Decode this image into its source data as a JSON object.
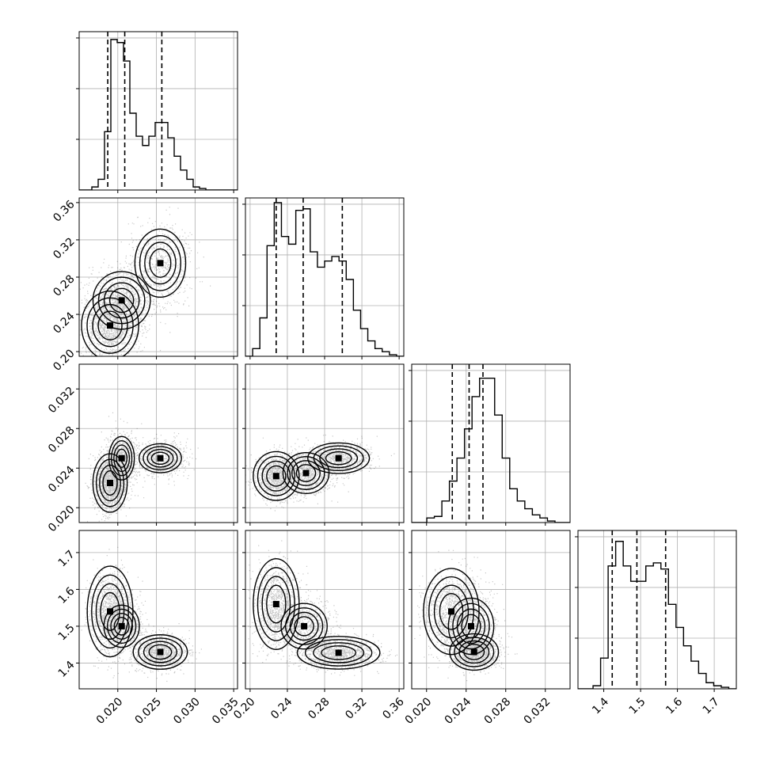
{
  "chart_data": {
    "type": "corner",
    "grid": true,
    "parameters": [
      {
        "range": [
          0.015,
          0.0355
        ],
        "ticks": [
          0.02,
          0.025,
          0.03,
          0.035
        ],
        "tick_labels": [
          "0.020",
          "0.025",
          "0.030",
          "0.035"
        ],
        "quantiles": [
          0.0187,
          0.0209,
          0.0257
        ],
        "modes": [
          {
            "center": 0.0195,
            "sigma": 0.0018,
            "weight": 0.6
          },
          {
            "center": 0.0255,
            "sigma": 0.0018,
            "weight": 0.4
          }
        ]
      },
      {
        "range": [
          0.195,
          0.365
        ],
        "ticks": [
          0.2,
          0.24,
          0.28,
          0.32,
          0.36
        ],
        "tick_labels": [
          "0.20",
          "0.24",
          "0.28",
          "0.32",
          "0.36"
        ],
        "quantiles": [
          0.228,
          0.257,
          0.299
        ],
        "modes": [
          {
            "center": 0.228,
            "sigma": 0.012,
            "weight": 0.35
          },
          {
            "center": 0.258,
            "sigma": 0.012,
            "weight": 0.35
          },
          {
            "center": 0.295,
            "sigma": 0.018,
            "weight": 0.3
          }
        ]
      },
      {
        "range": [
          0.0185,
          0.0345
        ],
        "ticks": [
          0.02,
          0.024,
          0.028,
          0.032
        ],
        "tick_labels": [
          "0.020",
          "0.024",
          "0.028",
          "0.032"
        ],
        "quantiles": [
          0.0226,
          0.0243,
          0.0257
        ],
        "modes": [
          {
            "center": 0.0245,
            "sigma": 0.0014,
            "weight": 1.0
          }
        ]
      },
      {
        "range": [
          1.33,
          1.76
        ],
        "ticks": [
          1.4,
          1.5,
          1.6,
          1.7
        ],
        "tick_labels": [
          "1.4",
          "1.5",
          "1.6",
          "1.7"
        ],
        "quantiles": [
          1.423,
          1.49,
          1.568
        ],
        "modes": [
          {
            "center": 1.43,
            "sigma": 0.02,
            "weight": 0.45
          },
          {
            "center": 1.52,
            "sigma": 0.04,
            "weight": 0.4
          },
          {
            "center": 1.58,
            "sigma": 0.04,
            "weight": 0.15
          }
        ]
      }
    ],
    "histograms": [
      {
        "param": 0,
        "bins": [
          0.015,
          0.0355
        ],
        "counts": [
          0,
          0,
          0.02,
          0.07,
          0.38,
          0.98,
          0.96,
          0.84,
          0.5,
          0.35,
          0.29,
          0.35,
          0.44,
          0.44,
          0.34,
          0.22,
          0.13,
          0.07,
          0.02,
          0.01,
          0,
          0,
          0,
          0,
          0
        ]
      },
      {
        "param": 1,
        "bins": [
          0.195,
          0.365
        ],
        "counts": [
          0,
          0.05,
          0.25,
          0.72,
          1.0,
          0.78,
          0.73,
          0.95,
          0.96,
          0.68,
          0.58,
          0.62,
          0.65,
          0.62,
          0.5,
          0.3,
          0.18,
          0.1,
          0.05,
          0.03,
          0.01,
          0
        ]
      },
      {
        "param": 2,
        "bins": [
          0.0185,
          0.0345
        ],
        "counts": [
          0,
          0,
          0.03,
          0.04,
          0.14,
          0.27,
          0.42,
          0.61,
          0.82,
          0.94,
          0.94,
          0.7,
          0.42,
          0.22,
          0.14,
          0.09,
          0.05,
          0.03,
          0.01,
          0,
          0
        ]
      },
      {
        "param": 3,
        "bins": [
          1.33,
          1.76
        ],
        "counts": [
          0,
          0,
          0.02,
          0.2,
          0.8,
          0.96,
          0.8,
          0.7,
          0.7,
          0.8,
          0.82,
          0.78,
          0.55,
          0.4,
          0.28,
          0.18,
          0.1,
          0.04,
          0.02,
          0.01,
          0
        ]
      }
    ],
    "correlations": [
      {
        "x": 0,
        "y": 1,
        "modes": [
          {
            "cx": 0.019,
            "cy": 0.228,
            "sx": 0.0015,
            "sy": 0.015,
            "w": 1.0
          },
          {
            "cx": 0.0205,
            "cy": 0.255,
            "sx": 0.0018,
            "sy": 0.015,
            "w": 0.7
          },
          {
            "cx": 0.0255,
            "cy": 0.295,
            "sx": 0.0018,
            "sy": 0.02,
            "w": 0.55
          }
        ]
      },
      {
        "x": 0,
        "y": 2,
        "modes": [
          {
            "cx": 0.019,
            "cy": 0.0225,
            "sx": 0.0009,
            "sy": 0.0012,
            "w": 1.0
          },
          {
            "cx": 0.0205,
            "cy": 0.025,
            "sx": 0.0009,
            "sy": 0.0012,
            "w": 0.55
          },
          {
            "cx": 0.0255,
            "cy": 0.025,
            "sx": 0.0015,
            "sy": 0.0008,
            "w": 0.55
          }
        ]
      },
      {
        "x": 1,
        "y": 2,
        "modes": [
          {
            "cx": 0.228,
            "cy": 0.0232,
            "sx": 0.01,
            "sy": 0.001,
            "w": 1.0
          },
          {
            "cx": 0.26,
            "cy": 0.0235,
            "sx": 0.012,
            "sy": 0.001,
            "w": 0.7
          },
          {
            "cx": 0.295,
            "cy": 0.025,
            "sx": 0.015,
            "sy": 0.0007,
            "w": 0.8
          }
        ]
      },
      {
        "x": 0,
        "y": 3,
        "modes": [
          {
            "cx": 0.019,
            "cy": 1.54,
            "sx": 0.0012,
            "sy": 0.05,
            "w": 1.0
          },
          {
            "cx": 0.0205,
            "cy": 1.5,
            "sx": 0.0012,
            "sy": 0.03,
            "w": 0.6
          },
          {
            "cx": 0.0255,
            "cy": 1.43,
            "sx": 0.0015,
            "sy": 0.02,
            "w": 0.9
          }
        ]
      },
      {
        "x": 1,
        "y": 3,
        "modes": [
          {
            "cx": 0.228,
            "cy": 1.56,
            "sx": 0.01,
            "sy": 0.05,
            "w": 1.0
          },
          {
            "cx": 0.258,
            "cy": 1.5,
            "sx": 0.012,
            "sy": 0.03,
            "w": 0.7
          },
          {
            "cx": 0.295,
            "cy": 1.428,
            "sx": 0.018,
            "sy": 0.018,
            "w": 1.0
          }
        ]
      },
      {
        "x": 2,
        "y": 3,
        "modes": [
          {
            "cx": 0.0225,
            "cy": 1.54,
            "sx": 0.0012,
            "sy": 0.05,
            "w": 0.9
          },
          {
            "cx": 0.0245,
            "cy": 1.5,
            "sx": 0.0012,
            "sy": 0.04,
            "w": 0.6
          },
          {
            "cx": 0.0248,
            "cy": 1.43,
            "sx": 0.001,
            "sy": 0.02,
            "w": 1.0
          }
        ]
      }
    ]
  }
}
